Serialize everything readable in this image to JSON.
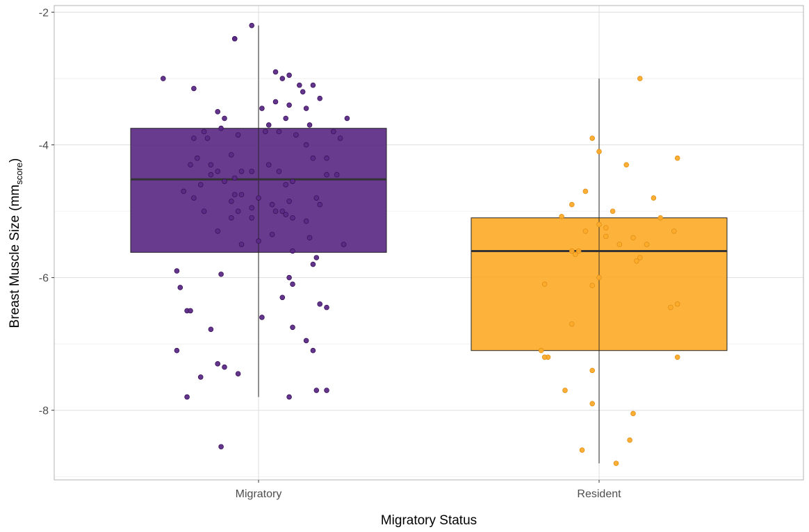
{
  "chart_data": {
    "type": "box",
    "xlabel": "Migratory Status",
    "ylabel": {
      "main": "Breast Muscle Size",
      "unit": "mm",
      "unit_sub": "score"
    },
    "ylim": [
      -9.05,
      -1.9
    ],
    "yticks": [
      -2,
      -4,
      -6,
      -8
    ],
    "grid": true,
    "categories": [
      "Migratory",
      "Resident"
    ],
    "colors": {
      "Migratory": "#5b2a86",
      "Resident": "#fdab2a"
    },
    "boxes": [
      {
        "category": "Migratory",
        "whisker_low": -7.8,
        "q1": -5.62,
        "median": -4.52,
        "q3": -3.75,
        "whisker_high": -2.2
      },
      {
        "category": "Resident",
        "whisker_low": -8.8,
        "q1": -7.1,
        "median": -5.6,
        "q3": -5.1,
        "whisker_high": -3.0
      }
    ],
    "points": {
      "Migratory": [
        [
          -0.02,
          -2.2
        ],
        [
          -0.07,
          -2.4
        ],
        [
          -0.07,
          -2.4
        ],
        [
          0.05,
          -2.9
        ],
        [
          0.09,
          -2.95
        ],
        [
          0.07,
          -3.0
        ],
        [
          -0.28,
          -3.0
        ],
        [
          0.12,
          -3.1
        ],
        [
          0.16,
          -3.1
        ],
        [
          -0.19,
          -3.15
        ],
        [
          0.13,
          -3.2
        ],
        [
          0.05,
          -3.35
        ],
        [
          0.09,
          -3.4
        ],
        [
          0.18,
          -3.3
        ],
        [
          0.01,
          -3.45
        ],
        [
          0.14,
          -3.45
        ],
        [
          -0.12,
          -3.5
        ],
        [
          -0.1,
          -3.6
        ],
        [
          0.08,
          -3.6
        ],
        [
          0.26,
          -3.6
        ],
        [
          0.15,
          -3.7
        ],
        [
          0.03,
          -3.7
        ],
        [
          -0.11,
          -3.75
        ],
        [
          0.02,
          -3.8
        ],
        [
          0.06,
          -3.8
        ],
        [
          -0.16,
          -3.8
        ],
        [
          -0.06,
          -3.85
        ],
        [
          0.22,
          -3.8
        ],
        [
          0.11,
          -3.85
        ],
        [
          -0.19,
          -3.9
        ],
        [
          -0.15,
          -3.9
        ],
        [
          0.24,
          -3.9
        ],
        [
          0.14,
          -4.0
        ],
        [
          -0.08,
          -4.15
        ],
        [
          0.2,
          -4.2
        ],
        [
          -0.18,
          -4.2
        ],
        [
          0.16,
          -4.2
        ],
        [
          -0.2,
          -4.3
        ],
        [
          -0.14,
          -4.3
        ],
        [
          0.03,
          -4.3
        ],
        [
          -0.12,
          -4.4
        ],
        [
          -0.05,
          -4.4
        ],
        [
          -0.02,
          -4.4
        ],
        [
          0.06,
          -4.4
        ],
        [
          0.23,
          -4.45
        ],
        [
          0.2,
          -4.45
        ],
        [
          -0.14,
          -4.45
        ],
        [
          -0.07,
          -4.5
        ],
        [
          -0.1,
          -4.55
        ],
        [
          0.1,
          -4.55
        ],
        [
          0.08,
          -4.6
        ],
        [
          -0.17,
          -4.6
        ],
        [
          -0.22,
          -4.7
        ],
        [
          -0.07,
          -4.75
        ],
        [
          -0.05,
          -4.75
        ],
        [
          0.0,
          -4.8
        ],
        [
          -0.19,
          -4.8
        ],
        [
          0.17,
          -4.8
        ],
        [
          0.09,
          -4.85
        ],
        [
          -0.08,
          -4.85
        ],
        [
          0.04,
          -4.9
        ],
        [
          0.18,
          -4.9
        ],
        [
          -0.02,
          -4.95
        ],
        [
          -0.16,
          -5.0
        ],
        [
          -0.06,
          -5.0
        ],
        [
          0.05,
          -5.0
        ],
        [
          0.07,
          -5.0
        ],
        [
          0.08,
          -5.05
        ],
        [
          0.1,
          -5.1
        ],
        [
          -0.08,
          -5.1
        ],
        [
          -0.02,
          -5.1
        ],
        [
          0.14,
          -5.15
        ],
        [
          -0.12,
          -5.3
        ],
        [
          0.04,
          -5.35
        ],
        [
          0.15,
          -5.4
        ],
        [
          0.0,
          -5.45
        ],
        [
          0.25,
          -5.5
        ],
        [
          -0.05,
          -5.5
        ],
        [
          0.1,
          -5.6
        ],
        [
          0.17,
          -5.7
        ],
        [
          0.16,
          -5.8
        ],
        [
          -0.24,
          -5.9
        ],
        [
          -0.11,
          -5.95
        ],
        [
          0.09,
          -6.0
        ],
        [
          0.1,
          -6.1
        ],
        [
          -0.23,
          -6.15
        ],
        [
          0.07,
          -6.3
        ],
        [
          0.18,
          -6.4
        ],
        [
          0.2,
          -6.45
        ],
        [
          -0.21,
          -6.5
        ],
        [
          -0.2,
          -6.5
        ],
        [
          0.01,
          -6.6
        ],
        [
          0.1,
          -6.75
        ],
        [
          -0.14,
          -6.78
        ],
        [
          0.14,
          -6.95
        ],
        [
          -0.24,
          -7.1
        ],
        [
          0.16,
          -7.1
        ],
        [
          -0.12,
          -7.3
        ],
        [
          -0.1,
          -7.35
        ],
        [
          -0.06,
          -7.45
        ],
        [
          -0.17,
          -7.5
        ],
        [
          0.17,
          -7.7
        ],
        [
          0.2,
          -7.7
        ],
        [
          -0.21,
          -7.8
        ],
        [
          0.09,
          -7.8
        ],
        [
          -0.11,
          -8.55
        ]
      ],
      "Resident": [
        [
          0.12,
          -3.0
        ],
        [
          -0.02,
          -3.9
        ],
        [
          0.0,
          -4.1
        ],
        [
          0.08,
          -4.3
        ],
        [
          0.23,
          -4.2
        ],
        [
          -0.04,
          -4.7
        ],
        [
          0.16,
          -4.8
        ],
        [
          -0.08,
          -4.9
        ],
        [
          0.04,
          -5.0
        ],
        [
          -0.11,
          -5.08
        ],
        [
          0.18,
          -5.1
        ],
        [
          0.0,
          -5.2
        ],
        [
          0.02,
          -5.25
        ],
        [
          0.22,
          -5.3
        ],
        [
          -0.04,
          -5.3
        ],
        [
          0.02,
          -5.38
        ],
        [
          0.1,
          -5.4
        ],
        [
          0.06,
          -5.5
        ],
        [
          0.14,
          -5.5
        ],
        [
          -0.08,
          -5.6
        ],
        [
          -0.06,
          -5.6
        ],
        [
          -0.07,
          -5.65
        ],
        [
          0.12,
          -5.7
        ],
        [
          0.11,
          -5.75
        ],
        [
          0.0,
          -6.0
        ],
        [
          -0.02,
          -6.12
        ],
        [
          -0.16,
          -6.1
        ],
        [
          0.23,
          -6.4
        ],
        [
          0.21,
          -6.45
        ],
        [
          -0.08,
          -6.7
        ],
        [
          0.23,
          -7.2
        ],
        [
          -0.17,
          -7.1
        ],
        [
          -0.15,
          -7.2
        ],
        [
          -0.16,
          -7.2
        ],
        [
          -0.02,
          -7.4
        ],
        [
          -0.1,
          -7.7
        ],
        [
          -0.02,
          -7.9
        ],
        [
          0.1,
          -8.05
        ],
        [
          0.09,
          -8.45
        ],
        [
          -0.05,
          -8.6
        ],
        [
          0.05,
          -8.8
        ]
      ]
    }
  }
}
